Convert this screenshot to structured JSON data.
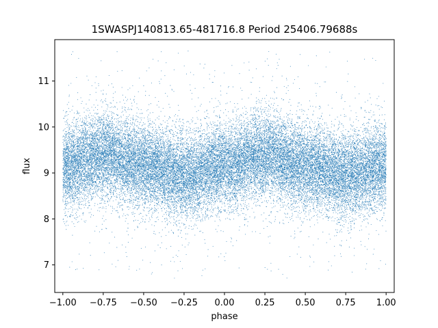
{
  "chart_data": {
    "type": "scatter",
    "title": "1SWASPJ140813.65-481716.8 Period 25406.79688s",
    "xlabel": "phase",
    "ylabel": "flux",
    "xlim": [
      -1.05,
      1.05
    ],
    "ylim": [
      6.4,
      11.9
    ],
    "x_ticks": [
      -1.0,
      -0.75,
      -0.5,
      -0.25,
      0.0,
      0.25,
      0.5,
      0.75,
      1.0
    ],
    "x_tick_labels": [
      "−1.00",
      "−0.75",
      "−0.50",
      "−0.25",
      "0.00",
      "0.25",
      "0.50",
      "0.75",
      "1.00"
    ],
    "y_ticks": [
      7,
      8,
      9,
      10,
      11
    ],
    "y_tick_labels": [
      "7",
      "8",
      "9",
      "10",
      "11"
    ],
    "grid": false,
    "marker_color": "#1f77b4",
    "series": [
      {
        "point_count_estimate": 30000,
        "phase_range": [
          -1.0,
          1.0
        ],
        "flux_profile": {
          "phase": [
            -1.0,
            -0.75,
            -0.5,
            -0.25,
            0.0,
            0.25,
            0.5,
            0.75,
            1.0
          ],
          "median_flux": [
            9.15,
            9.4,
            9.15,
            8.95,
            9.15,
            9.4,
            9.15,
            8.95,
            9.15
          ]
        },
        "typical_spread": 0.45,
        "outlier_range": [
          6.7,
          11.7
        ]
      }
    ]
  }
}
